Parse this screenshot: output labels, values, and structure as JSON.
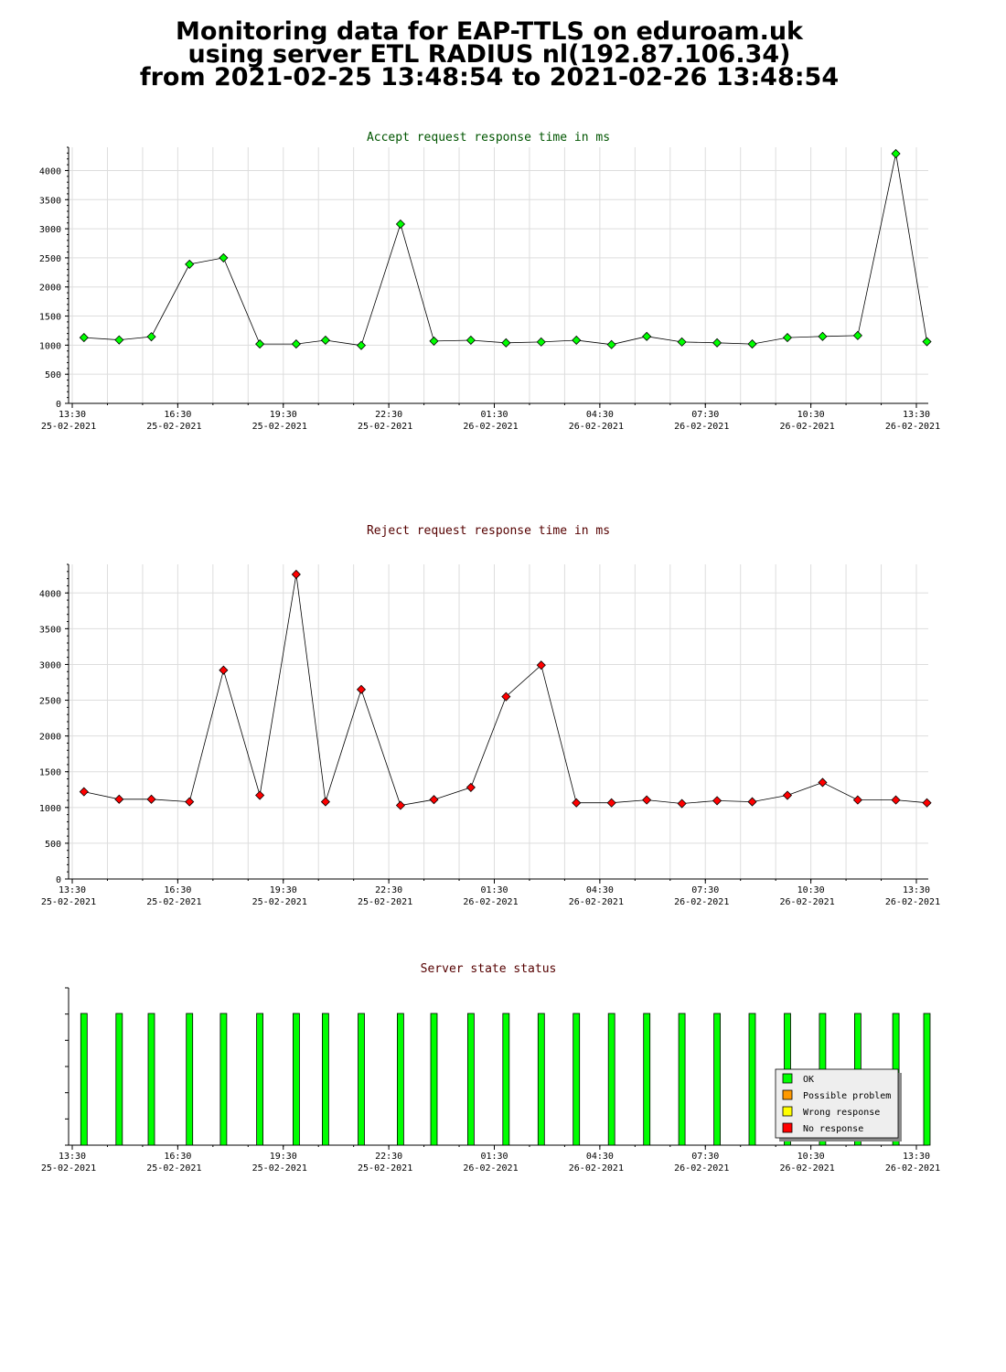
{
  "header": {
    "line1": "Monitoring data for EAP-TTLS on eduroam.uk",
    "line2": "using server ETL RADIUS nl(192.87.106.34)",
    "line3": "from 2021-02-25 13:48:54 to 2021-02-26 13:48:54"
  },
  "colors": {
    "accept": "#00ff00",
    "accept_title": "#005500",
    "reject": "#ff0000",
    "reject_title": "#550000",
    "status_title": "#550000",
    "grid": "#dddddd",
    "ok": "#00ff00",
    "possible_problem": "#ff9900",
    "wrong_response": "#ffff00",
    "no_response": "#ff0000"
  },
  "x_ticks": [
    {
      "time": "13:30",
      "date": "25-02-2021"
    },
    {
      "time": "16:30",
      "date": "25-02-2021"
    },
    {
      "time": "19:30",
      "date": "25-02-2021"
    },
    {
      "time": "22:30",
      "date": "25-02-2021"
    },
    {
      "time": "01:30",
      "date": "26-02-2021"
    },
    {
      "time": "04:30",
      "date": "26-02-2021"
    },
    {
      "time": "07:30",
      "date": "26-02-2021"
    },
    {
      "time": "10:30",
      "date": "26-02-2021"
    },
    {
      "time": "13:30",
      "date": "26-02-2021"
    }
  ],
  "chart_data": [
    {
      "type": "line",
      "title": "Accept request response time in ms",
      "series": [
        {
          "values": [
            {
              "x": "2021-02-25 13:50",
              "y": 1130
            },
            {
              "x": "2021-02-25 14:50",
              "y": 1090
            },
            {
              "x": "2021-02-25 15:45",
              "y": 1145
            },
            {
              "x": "2021-02-25 16:50",
              "y": 2390
            },
            {
              "x": "2021-02-25 17:48",
              "y": 2500
            },
            {
              "x": "2021-02-25 18:50",
              "y": 1020
            },
            {
              "x": "2021-02-25 19:52",
              "y": 1020
            },
            {
              "x": "2021-02-25 20:42",
              "y": 1085
            },
            {
              "x": "2021-02-25 21:43",
              "y": 995
            },
            {
              "x": "2021-02-25 22:50",
              "y": 3080
            },
            {
              "x": "2021-02-25 23:47",
              "y": 1070
            },
            {
              "x": "2021-02-26 00:50",
              "y": 1085
            },
            {
              "x": "2021-02-26 01:50",
              "y": 1040
            },
            {
              "x": "2021-02-26 02:50",
              "y": 1055
            },
            {
              "x": "2021-02-26 03:50",
              "y": 1085
            },
            {
              "x": "2021-02-26 04:50",
              "y": 1010
            },
            {
              "x": "2021-02-26 05:50",
              "y": 1150
            },
            {
              "x": "2021-02-26 06:50",
              "y": 1055
            },
            {
              "x": "2021-02-26 07:50",
              "y": 1040
            },
            {
              "x": "2021-02-26 08:50",
              "y": 1020
            },
            {
              "x": "2021-02-26 09:50",
              "y": 1130
            },
            {
              "x": "2021-02-26 10:50",
              "y": 1150
            },
            {
              "x": "2021-02-26 11:50",
              "y": 1165
            },
            {
              "x": "2021-02-26 12:55",
              "y": 4290
            },
            {
              "x": "2021-02-26 13:48",
              "y": 1060
            }
          ]
        }
      ],
      "ylim": [
        0,
        4400
      ],
      "y_ticks": [
        0,
        500,
        1000,
        1500,
        2000,
        2500,
        3000,
        3500,
        4000
      ],
      "grid": true
    },
    {
      "type": "line",
      "title": "Reject request response time in ms",
      "series": [
        {
          "values": [
            {
              "x": "2021-02-25 13:50",
              "y": 1220
            },
            {
              "x": "2021-02-25 14:50",
              "y": 1115
            },
            {
              "x": "2021-02-25 15:45",
              "y": 1115
            },
            {
              "x": "2021-02-25 16:50",
              "y": 1080
            },
            {
              "x": "2021-02-25 17:48",
              "y": 2920
            },
            {
              "x": "2021-02-25 18:50",
              "y": 1170
            },
            {
              "x": "2021-02-25 19:52",
              "y": 4260
            },
            {
              "x": "2021-02-25 20:42",
              "y": 1080
            },
            {
              "x": "2021-02-25 21:43",
              "y": 2650
            },
            {
              "x": "2021-02-25 22:50",
              "y": 1030
            },
            {
              "x": "2021-02-25 23:47",
              "y": 1110
            },
            {
              "x": "2021-02-26 00:50",
              "y": 1280
            },
            {
              "x": "2021-02-26 01:50",
              "y": 2550
            },
            {
              "x": "2021-02-26 02:50",
              "y": 2990
            },
            {
              "x": "2021-02-26 03:50",
              "y": 1065
            },
            {
              "x": "2021-02-26 04:50",
              "y": 1065
            },
            {
              "x": "2021-02-26 05:50",
              "y": 1105
            },
            {
              "x": "2021-02-26 06:50",
              "y": 1055
            },
            {
              "x": "2021-02-26 07:50",
              "y": 1095
            },
            {
              "x": "2021-02-26 08:50",
              "y": 1080
            },
            {
              "x": "2021-02-26 09:50",
              "y": 1170
            },
            {
              "x": "2021-02-26 10:50",
              "y": 1350
            },
            {
              "x": "2021-02-26 11:50",
              "y": 1105
            },
            {
              "x": "2021-02-26 12:55",
              "y": 1105
            },
            {
              "x": "2021-02-26 13:48",
              "y": 1065
            }
          ]
        }
      ],
      "ylim": [
        0,
        4400
      ],
      "y_ticks": [
        0,
        500,
        1000,
        1500,
        2000,
        2500,
        3000,
        3500,
        4000
      ],
      "grid": true
    },
    {
      "type": "bar",
      "title": "Server state status",
      "x": [
        "2021-02-25 13:50",
        "2021-02-25 14:50",
        "2021-02-25 15:45",
        "2021-02-25 16:50",
        "2021-02-25 17:48",
        "2021-02-25 18:50",
        "2021-02-25 19:52",
        "2021-02-25 20:42",
        "2021-02-25 21:43",
        "2021-02-25 22:50",
        "2021-02-25 23:47",
        "2021-02-26 00:50",
        "2021-02-26 01:50",
        "2021-02-26 02:50",
        "2021-02-26 03:50",
        "2021-02-26 04:50",
        "2021-02-26 05:50",
        "2021-02-26 06:50",
        "2021-02-26 07:50",
        "2021-02-26 08:50",
        "2021-02-26 09:50",
        "2021-02-26 10:50",
        "2021-02-26 11:50",
        "2021-02-26 12:55",
        "2021-02-26 13:48"
      ],
      "states": [
        "OK",
        "OK",
        "OK",
        "OK",
        "OK",
        "OK",
        "OK",
        "OK",
        "OK",
        "OK",
        "OK",
        "OK",
        "OK",
        "OK",
        "OK",
        "OK",
        "OK",
        "OK",
        "OK",
        "OK",
        "OK",
        "OK",
        "OK",
        "OK",
        "OK"
      ],
      "legend": [
        {
          "label": "OK",
          "color": "#00ff00"
        },
        {
          "label": "Possible problem",
          "color": "#ff9900"
        },
        {
          "label": "Wrong response",
          "color": "#ffff00"
        },
        {
          "label": "No response",
          "color": "#ff0000"
        }
      ],
      "legend_position": "bottom-right"
    }
  ]
}
